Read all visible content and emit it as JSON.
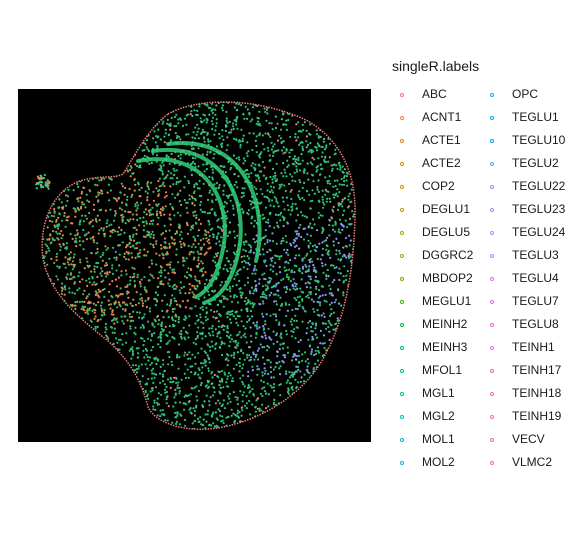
{
  "chart_data": {
    "type": "scatter",
    "title": "",
    "xlabel": "",
    "ylabel": "",
    "background": "#000000",
    "grid": false,
    "legend_placement": "right",
    "legend": {
      "title": "singleR.labels",
      "entries": [
        {
          "label": "ABC",
          "color": "#F8766D"
        },
        {
          "label": "ACNT1",
          "color": "#F17F50"
        },
        {
          "label": "ACTE1",
          "color": "#E88526"
        },
        {
          "label": "ACTE2",
          "color": "#DB8E00"
        },
        {
          "label": "COP2",
          "color": "#CD9600"
        },
        {
          "label": "DEGLU1",
          "color": "#BB9D00"
        },
        {
          "label": "DEGLU5",
          "color": "#A7A300"
        },
        {
          "label": "DGGRC2",
          "color": "#8EAB00"
        },
        {
          "label": "MBDOP2",
          "color": "#6FB000"
        },
        {
          "label": "MEGLU1",
          "color": "#3CB500"
        },
        {
          "label": "MEINH2",
          "color": "#00BA38"
        },
        {
          "label": "MEINH3",
          "color": "#00BD5F"
        },
        {
          "label": "MFOL1",
          "color": "#00BF7D"
        },
        {
          "label": "MGL1",
          "color": "#00C097"
        },
        {
          "label": "MGL2",
          "color": "#00C1AA"
        },
        {
          "label": "MOL1",
          "color": "#00BFC4"
        },
        {
          "label": "MOL2",
          "color": "#00BBDA"
        },
        {
          "label": "OPC",
          "color": "#00B5E8"
        },
        {
          "label": "TEGLU1",
          "color": "#00ADFA"
        },
        {
          "label": "TEGLU10",
          "color": "#00A5FF"
        },
        {
          "label": "TEGLU2",
          "color": "#619CFF"
        },
        {
          "label": "TEGLU22",
          "color": "#8B93FF"
        },
        {
          "label": "TEGLU23",
          "color": "#A58AFF"
        },
        {
          "label": "TEGLU24",
          "color": "#B983FF"
        },
        {
          "label": "TEGLU3",
          "color": "#C77CFF"
        },
        {
          "label": "TEGLU4",
          "color": "#D974EF"
        },
        {
          "label": "TEGLU7",
          "color": "#E76BF3"
        },
        {
          "label": "TEGLU8",
          "color": "#F265DC"
        },
        {
          "label": "TEINH1",
          "color": "#FA62DB"
        },
        {
          "label": "TEINH17",
          "color": "#FF61C3"
        },
        {
          "label": "TEINH18",
          "color": "#FF64B0"
        },
        {
          "label": "TEINH19",
          "color": "#FF6C91"
        },
        {
          "label": "VECV",
          "color": "#FF6A98"
        },
        {
          "label": "VLMC2",
          "color": "#F8766D"
        }
      ]
    },
    "series_note_colors": {
      "dominant_green": "#2FBF71",
      "cortex_green": "#3FC48A",
      "orange_region": "#E08A4A",
      "edge_pink": "#F27B7B",
      "cortex_blue": "#8A9BF0"
    }
  }
}
